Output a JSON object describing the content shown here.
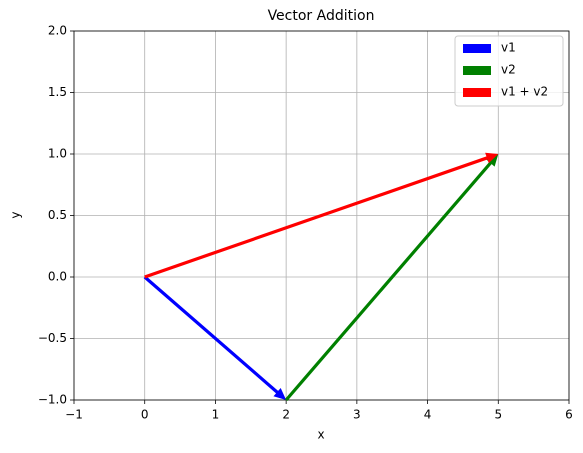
{
  "chart_data": {
    "type": "quiver",
    "title": "Vector Addition",
    "x_label": "x",
    "y_label": "y",
    "series": [
      {
        "name": "v1",
        "color": "#0000ff",
        "x0": 0,
        "y0": 0,
        "dx": 2,
        "dy": -1
      },
      {
        "name": "v2",
        "color": "#008000",
        "x0": 2,
        "y0": -1,
        "dx": 3,
        "dy": 2
      },
      {
        "name": "v1 + v2",
        "color": "#ff0000",
        "x0": 0,
        "y0": 0,
        "dx": 5,
        "dy": 1
      }
    ],
    "xlim": [
      -1,
      6
    ],
    "xticks": [
      {
        "value": -1,
        "label": "−1"
      },
      0,
      1,
      2,
      3,
      4,
      5,
      6
    ],
    "ylim": [
      -1,
      2
    ],
    "yticks": [
      {
        "value": -1,
        "label": "−1.0"
      },
      {
        "value": -0.5,
        "label": "−0.5"
      },
      {
        "value": 0,
        "label": "0.0"
      },
      {
        "value": 0.5,
        "label": "0.5"
      },
      {
        "value": 1,
        "label": "1.0"
      },
      {
        "value": 1.5,
        "label": "1.5"
      },
      {
        "value": 2,
        "label": "2.0"
      }
    ],
    "grid": true,
    "legend": "upper right"
  }
}
